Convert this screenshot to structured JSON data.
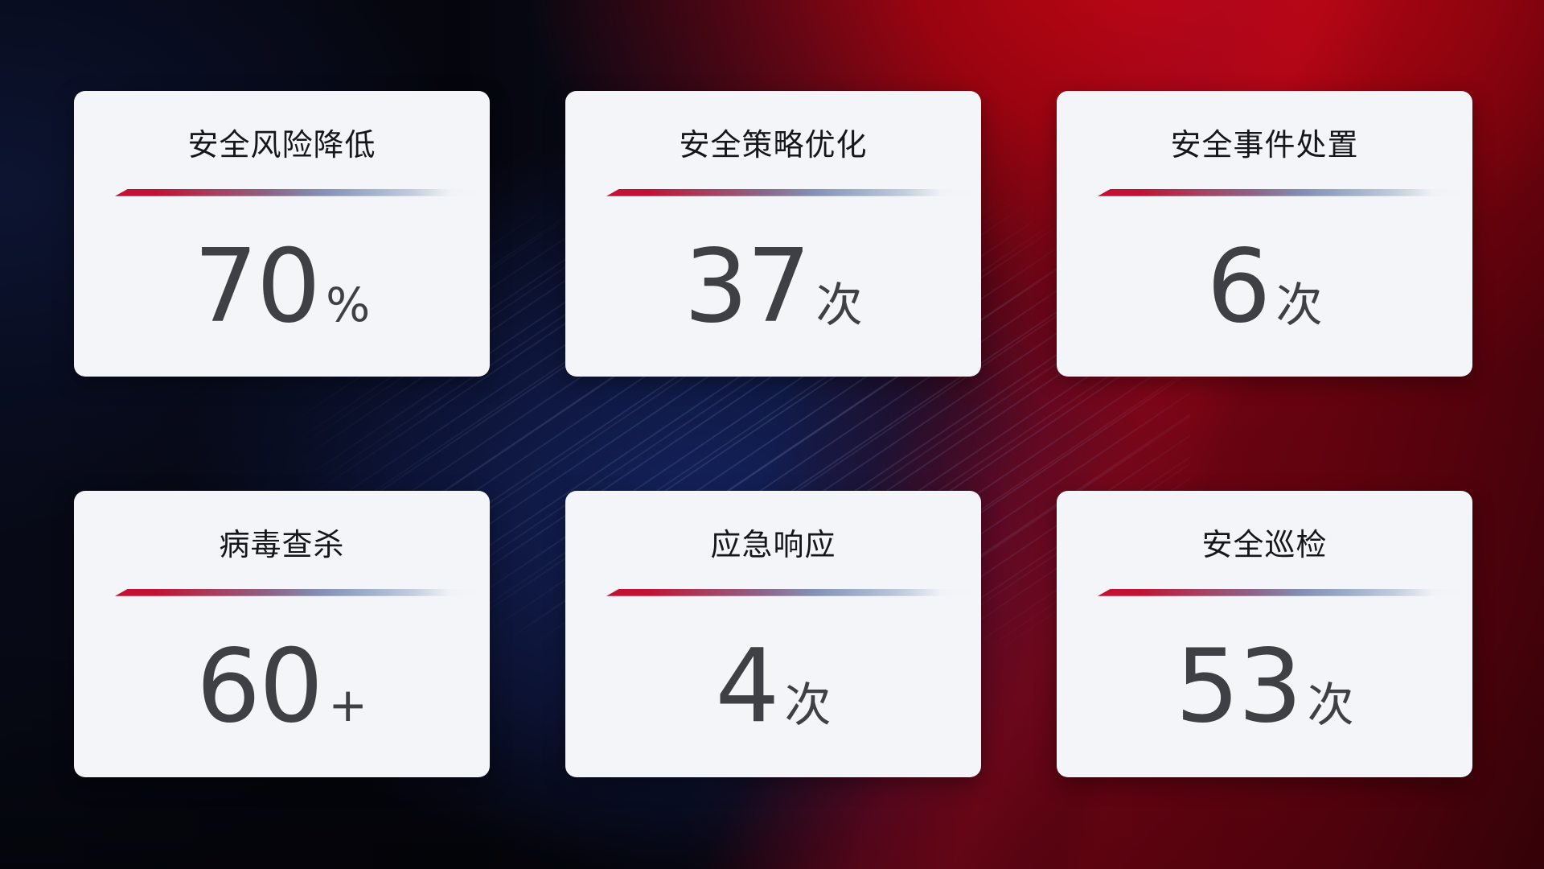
{
  "theme": {
    "card_background": "#f4f5f8",
    "title_color": "#16171b",
    "value_color": "#3f4045",
    "underline_gradient_start": "#c21133",
    "underline_gradient_mid": "#8390b4",
    "underline_gradient_end": "#c2cddd",
    "background_red": "#a30410",
    "background_blue": "#14235e",
    "background_dark": "#06070d"
  },
  "cards": [
    {
      "title": "安全风险降低",
      "value": "70",
      "unit": "%"
    },
    {
      "title": "安全策略优化",
      "value": "37",
      "unit": "次"
    },
    {
      "title": "安全事件处置",
      "value": "6",
      "unit": "次"
    },
    {
      "title": "病毒查杀",
      "value": "60",
      "unit": "+"
    },
    {
      "title": "应急响应",
      "value": "4",
      "unit": "次"
    },
    {
      "title": "安全巡检",
      "value": "53",
      "unit": "次"
    }
  ]
}
